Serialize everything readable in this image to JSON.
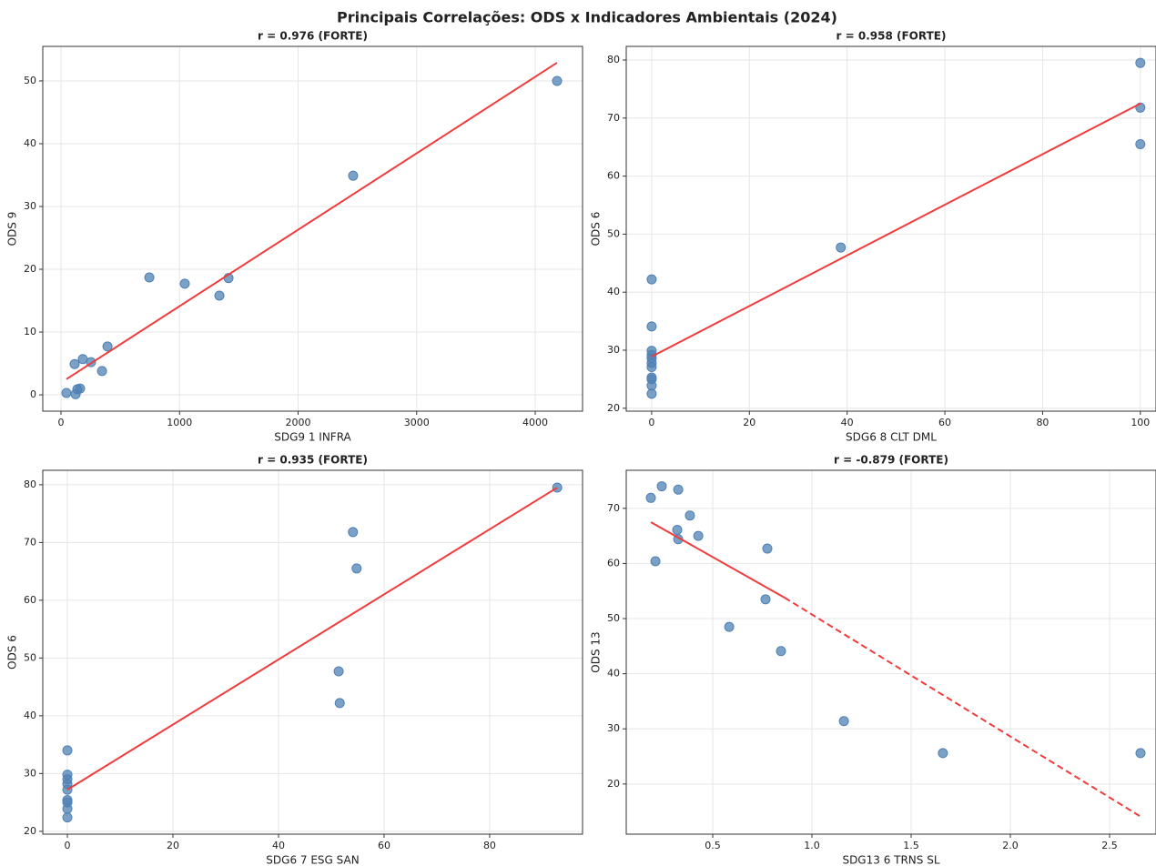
{
  "title": "Principais Correlações: ODS x Indicadores Ambientais (2024)",
  "chart_data": [
    {
      "type": "scatter",
      "title": "r = 0.976 (FORTE)",
      "xlabel": "SDG9 1 INFRA",
      "ylabel": "ODS 9",
      "x": [
        4184,
        2464,
        745,
        1044,
        1336,
        1413,
        392,
        184,
        253,
        115,
        346,
        161,
        138,
        123,
        46
      ],
      "values": [
        50,
        34.9,
        18.7,
        17.7,
        15.8,
        18.6,
        7.7,
        5.7,
        5.2,
        4.9,
        3.8,
        1.0,
        0.9,
        0.1,
        0.3
      ],
      "color": "#4f81b4",
      "trend": {
        "x": [
          46,
          4184
        ],
        "values": [
          2.5,
          52.9
        ],
        "color": "#f03c3c",
        "styles": [
          "solid"
        ]
      },
      "xlim": [
        -153.6,
        4399
      ],
      "ylim": [
        -2.6,
        55.5
      ],
      "xticks": [
        0,
        1000,
        2000,
        3000,
        4000
      ],
      "yticks": [
        0,
        10,
        20,
        30,
        40,
        50
      ],
      "grid": true
    },
    {
      "type": "scatter",
      "title": "r = 0.958 (FORTE)",
      "xlabel": "SDG6 8 CLT DML",
      "ylabel": "ODS 6",
      "x": [
        100,
        100,
        100,
        38.7,
        0,
        0,
        0,
        0,
        0,
        0,
        0,
        0,
        0,
        0,
        0
      ],
      "values": [
        79.5,
        71.8,
        65.5,
        47.7,
        42.2,
        34.1,
        29.9,
        29.2,
        28.6,
        27.8,
        27.1,
        25.3,
        25.0,
        23.9,
        22.5
      ],
      "color": "#4f81b4",
      "trend": {
        "x": [
          0,
          100
        ],
        "values": [
          28.9,
          72.5
        ],
        "color": "#f03c3c",
        "styles": [
          "solid"
        ]
      },
      "xlim": [
        -5.2,
        103.2
      ],
      "ylim": [
        19.5,
        82.35
      ],
      "xticks": [
        0,
        20,
        40,
        60,
        80,
        100
      ],
      "yticks": [
        20,
        30,
        40,
        50,
        60,
        70,
        80
      ],
      "grid": true
    },
    {
      "type": "scatter",
      "title": "r = 0.935 (FORTE)",
      "xlabel": "SDG6 7 ESG SAN",
      "ylabel": "ODS 6",
      "x": [
        92.8,
        54.1,
        54.8,
        51.4,
        51.6,
        0,
        0,
        0,
        0,
        0,
        0,
        0,
        0,
        0
      ],
      "values": [
        79.5,
        71.8,
        65.5,
        47.7,
        42.2,
        34.0,
        29.8,
        29.0,
        28.2,
        27.2,
        25.4,
        25.0,
        23.9,
        22.4
      ],
      "color": "#4f81b4",
      "trend": {
        "x": [
          0,
          92.8
        ],
        "values": [
          27.2,
          79.5
        ],
        "color": "#f03c3c",
        "styles": [
          "solid"
        ]
      },
      "xlim": [
        -4.66,
        97.6
      ],
      "ylim": [
        19.5,
        82.5
      ],
      "xticks": [
        0,
        20,
        40,
        60,
        80
      ],
      "yticks": [
        20,
        30,
        40,
        50,
        60,
        70,
        80
      ],
      "grid": true
    },
    {
      "type": "scatter",
      "title": "r = -0.879 (FORTE)",
      "xlabel": "SDG13 6 TRNS SL",
      "ylabel": "ODS 13",
      "x": [
        0.188,
        0.243,
        0.326,
        0.385,
        0.321,
        0.427,
        0.326,
        0.211,
        0.775,
        0.766,
        0.583,
        0.844,
        1.161,
        1.66,
        2.656
      ],
      "values": [
        71.9,
        74.0,
        73.4,
        68.7,
        66.1,
        65.0,
        64.4,
        60.4,
        62.7,
        53.5,
        48.5,
        44.1,
        31.4,
        25.6,
        25.6
      ],
      "color": "#4f81b4",
      "trend": {
        "x": [
          0.188,
          0.862,
          2.656
        ],
        "values": [
          67.5,
          53.8,
          14.1
        ],
        "color": "#f03c3c",
        "styles": [
          "solid",
          "dashed"
        ]
      },
      "xlim": [
        0.064,
        2.734
      ],
      "ylim": [
        10.9,
        76.9
      ],
      "xticks": [
        0.5,
        {
          "value": 1.0,
          "label": "1.0"
        },
        1.5,
        {
          "value": 2.0,
          "label": "2.0"
        },
        2.5
      ],
      "yticks": [
        20,
        30,
        40,
        50,
        60,
        70
      ],
      "grid": true
    }
  ]
}
